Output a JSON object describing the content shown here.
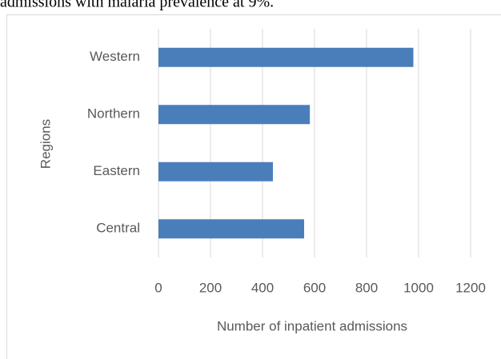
{
  "caption": "admissions with malaria prevalence at 9%.",
  "chart_data": {
    "type": "hbar",
    "categories": [
      "Western",
      "Northern",
      "Eastern",
      "Central"
    ],
    "values": [
      980,
      582,
      440,
      560
    ],
    "color": "#4a7ebb",
    "xlabel": "Number of inpatient admissions",
    "ylabel": "Regions",
    "xlim": [
      0,
      1200
    ],
    "xticks": [
      0,
      200,
      400,
      600,
      800,
      1000,
      1200
    ],
    "grid": true
  }
}
